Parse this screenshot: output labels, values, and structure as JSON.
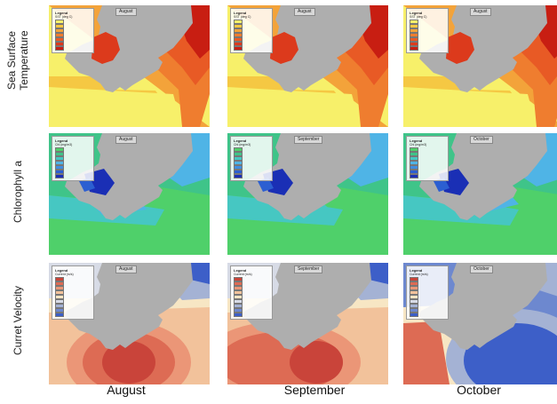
{
  "rows": [
    {
      "key": "sst",
      "label_lines": [
        "Sea Surface",
        "Temperature"
      ],
      "legend_title": "Legend",
      "legend_unit": "SST (deg C)",
      "legend_colors": [
        "#f7f06a",
        "#f5c843",
        "#f3a33a",
        "#ef7d2f",
        "#e85a25",
        "#dc3a1c",
        "#c81e12"
      ],
      "legend_values": [
        "",
        "",
        "",
        "",
        "",
        "",
        ""
      ]
    },
    {
      "key": "chl",
      "label_lines": [
        "Chlorophyll a"
      ],
      "legend_title": "Legend",
      "legend_unit": "Chl (mg/m3)",
      "legend_colors": [
        "#4fd06a",
        "#3fc489",
        "#46c7c2",
        "#4fb4e6",
        "#3f8de0",
        "#2c5fd1",
        "#1a2fb5"
      ],
      "legend_values": [
        "",
        "",
        "",
        "",
        "",
        "",
        ""
      ]
    },
    {
      "key": "cur",
      "label_lines": [
        "Curret Velocity"
      ],
      "legend_title": "Legend",
      "legend_unit": "Current (m/s)",
      "legend_colors": [
        "#c9443a",
        "#dd6b54",
        "#eb9677",
        "#f2c29b",
        "#f7e6c4",
        "#d7dbe6",
        "#a4b2d4",
        "#6d88cf",
        "#3d5fc8"
      ],
      "legend_values": [
        "",
        "",
        "",
        "",
        "",
        "",
        "",
        "",
        ""
      ]
    }
  ],
  "columns": [
    {
      "label": "August"
    },
    {
      "label": "September"
    },
    {
      "label": "October"
    }
  ],
  "panel_tags": {
    "sst": [
      "August",
      "August",
      "August"
    ],
    "chl": [
      "August",
      "September",
      "October"
    ],
    "cur": [
      "August",
      "September",
      "October"
    ]
  },
  "colors": {
    "land": "#aeaeae",
    "sst_warm": "#e0461c",
    "sst_cool": "#f1e24a",
    "chl_low": "#36c35a",
    "chl_high": "#1f3fc0",
    "cur_slow_red": "#c9443a",
    "cur_fast_blue": "#3d5fc8"
  }
}
